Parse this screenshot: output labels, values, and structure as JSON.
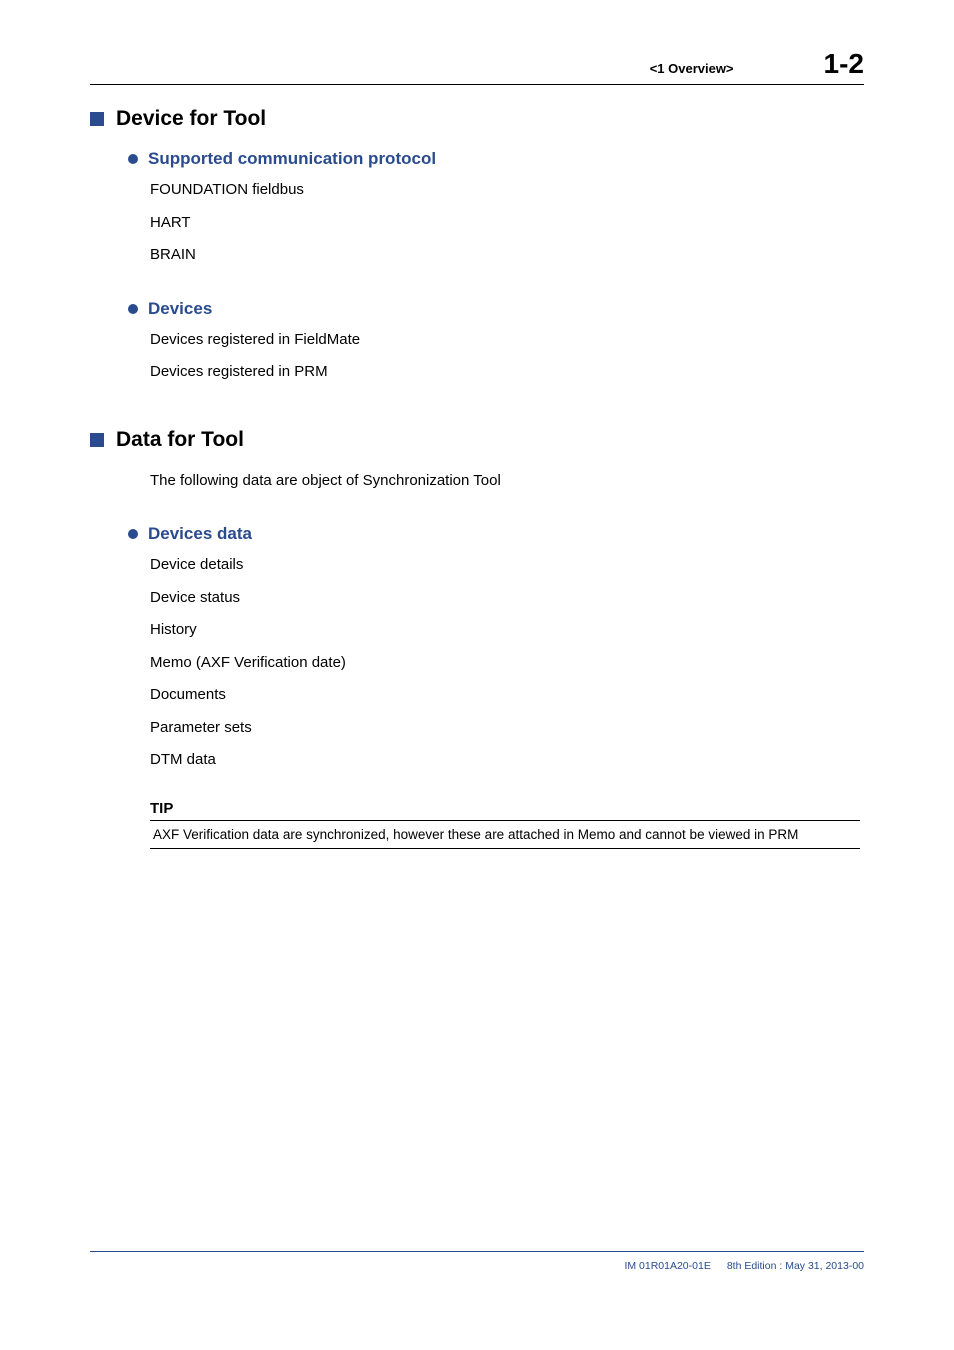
{
  "header": {
    "chapter_ref": "<1  Overview>",
    "page_number": "1-2"
  },
  "sections": [
    {
      "title": "Device for Tool",
      "intro": null,
      "subsections": [
        {
          "title": "Supported communication protocol",
          "lines": [
            "FOUNDATION fieldbus",
            "HART",
            "BRAIN"
          ]
        },
        {
          "title": "Devices",
          "lines": [
            "Devices registered in FieldMate",
            "Devices registered in PRM"
          ]
        }
      ]
    },
    {
      "title": "Data for Tool",
      "intro": "The following data are object of Synchronization Tool",
      "subsections": [
        {
          "title": "Devices data",
          "lines": [
            "Device details",
            "Device status",
            "History",
            "Memo (AXF Verification date)",
            "Documents",
            "Parameter sets",
            "DTM data"
          ]
        }
      ]
    }
  ],
  "tip": {
    "label": "TIP",
    "text": "AXF Verification data are synchronized, however these are attached in Memo and cannot be viewed in PRM"
  },
  "footer": {
    "doc_id": "IM 01R01A20-01E",
    "edition": "8th Edition : May 31, 2013-00"
  },
  "colors": {
    "accent": "#2a4b8d",
    "text": "#000000",
    "background": "#ffffff"
  }
}
